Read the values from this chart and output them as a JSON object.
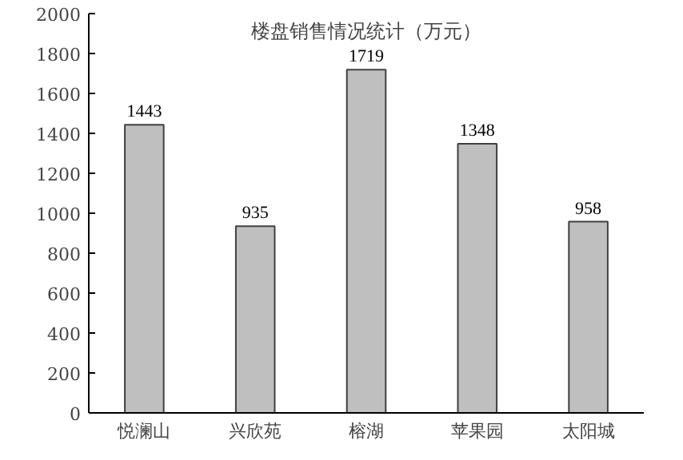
{
  "chart_data": {
    "type": "bar",
    "title": "楼盘销售情况统计（万元）",
    "categories": [
      "悦澜山",
      "兴欣苑",
      "榕湖",
      "苹果园",
      "太阳城"
    ],
    "values": [
      1443,
      935,
      1719,
      1348,
      958
    ],
    "color": "#bfbfbf",
    "ylim": [
      0,
      2000
    ],
    "yticks": [
      0,
      200,
      400,
      600,
      800,
      1000,
      1200,
      1400,
      1600,
      1800,
      2000
    ],
    "data_labels": true,
    "grid": false
  }
}
